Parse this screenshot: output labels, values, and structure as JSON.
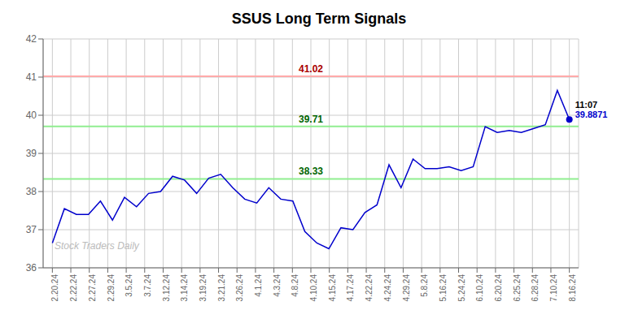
{
  "chart_data": {
    "type": "line",
    "title": "SSUS Long Term Signals",
    "x": [
      0,
      0.651163,
      1.302326,
      1.953488,
      2.604651,
      3.255814,
      3.906977,
      4.55814,
      5.209302,
      5.860465,
      6.511628,
      7.162791,
      7.813953,
      8.465116,
      9.116279,
      9.767442,
      10.418605,
      11.069767,
      11.72093,
      12.372093,
      13.023256,
      13.674419,
      14.325581,
      14.976744,
      15.627907,
      16.27907,
      16.930233,
      17.581395,
      18.232558,
      18.883721,
      19.534884,
      20.186047,
      20.837209,
      21.488372,
      22.139535,
      22.790698,
      23.44186,
      24.093023,
      24.744186,
      25.395349,
      26.046512,
      26.697674,
      27.348837,
      28
    ],
    "values": [
      36.65,
      37.55,
      37.4,
      37.4,
      37.75,
      37.25,
      37.85,
      37.6,
      37.95,
      38.0,
      38.4,
      38.3,
      37.95,
      38.35,
      38.45,
      38.1,
      37.8,
      37.7,
      38.1,
      37.8,
      37.75,
      36.95,
      36.65,
      36.5,
      37.05,
      37.0,
      37.45,
      37.65,
      38.7,
      38.1,
      38.85,
      38.6,
      38.6,
      38.65,
      38.55,
      38.65,
      39.7,
      39.55,
      39.6,
      39.55,
      39.65,
      39.75,
      40.65,
      39.8871
    ],
    "color": "#0000cc",
    "xlim": [
      -0.5,
      28.5
    ],
    "xticks": [
      {
        "value": 0,
        "label": "2.20.24"
      },
      {
        "value": 1,
        "label": "2.22.24"
      },
      {
        "value": 2,
        "label": "2.27.24"
      },
      {
        "value": 3,
        "label": "2.29.24"
      },
      {
        "value": 4,
        "label": "3.5.24"
      },
      {
        "value": 5,
        "label": "3.7.24"
      },
      {
        "value": 6,
        "label": "3.12.24"
      },
      {
        "value": 7,
        "label": "3.14.24"
      },
      {
        "value": 8,
        "label": "3.19.24"
      },
      {
        "value": 9,
        "label": "3.21.24"
      },
      {
        "value": 10,
        "label": "3.26.24"
      },
      {
        "value": 11,
        "label": "4.1.24"
      },
      {
        "value": 12,
        "label": "4.3.24"
      },
      {
        "value": 13,
        "label": "4.8.24"
      },
      {
        "value": 14,
        "label": "4.10.24"
      },
      {
        "value": 15,
        "label": "4.15.24"
      },
      {
        "value": 16,
        "label": "4.17.24"
      },
      {
        "value": 17,
        "label": "4.22.24"
      },
      {
        "value": 18,
        "label": "4.24.24"
      },
      {
        "value": 19,
        "label": "4.29.24"
      },
      {
        "value": 20,
        "label": "5.8.24"
      },
      {
        "value": 21,
        "label": "5.16.24"
      },
      {
        "value": 22,
        "label": "5.24.24"
      },
      {
        "value": 23,
        "label": "6.10.24"
      },
      {
        "value": 24,
        "label": "6.20.24"
      },
      {
        "value": 25,
        "label": "6.25.24"
      },
      {
        "value": 26,
        "label": "6.28.24"
      },
      {
        "value": 27,
        "label": "7.10.24"
      },
      {
        "value": 28,
        "label": "8.16.24"
      }
    ],
    "ylim": [
      36,
      42
    ],
    "yticks": [
      36,
      37,
      38,
      39,
      40,
      41,
      42
    ],
    "grid": true,
    "reference_lines": [
      {
        "value": 41.02,
        "label": "41.02",
        "color": "#ffaaaa",
        "label_color": "#aa0000"
      },
      {
        "value": 39.71,
        "label": "39.71",
        "color": "#90EE90",
        "label_color": "#006600"
      },
      {
        "value": 38.33,
        "label": "38.33",
        "color": "#90EE90",
        "label_color": "#006600"
      }
    ],
    "point_annotations": [
      {
        "text": "11:07",
        "color": "#000000"
      },
      {
        "text": "39.8871",
        "color": "#0000cc"
      }
    ],
    "watermark": "Stock Traders Daily"
  }
}
